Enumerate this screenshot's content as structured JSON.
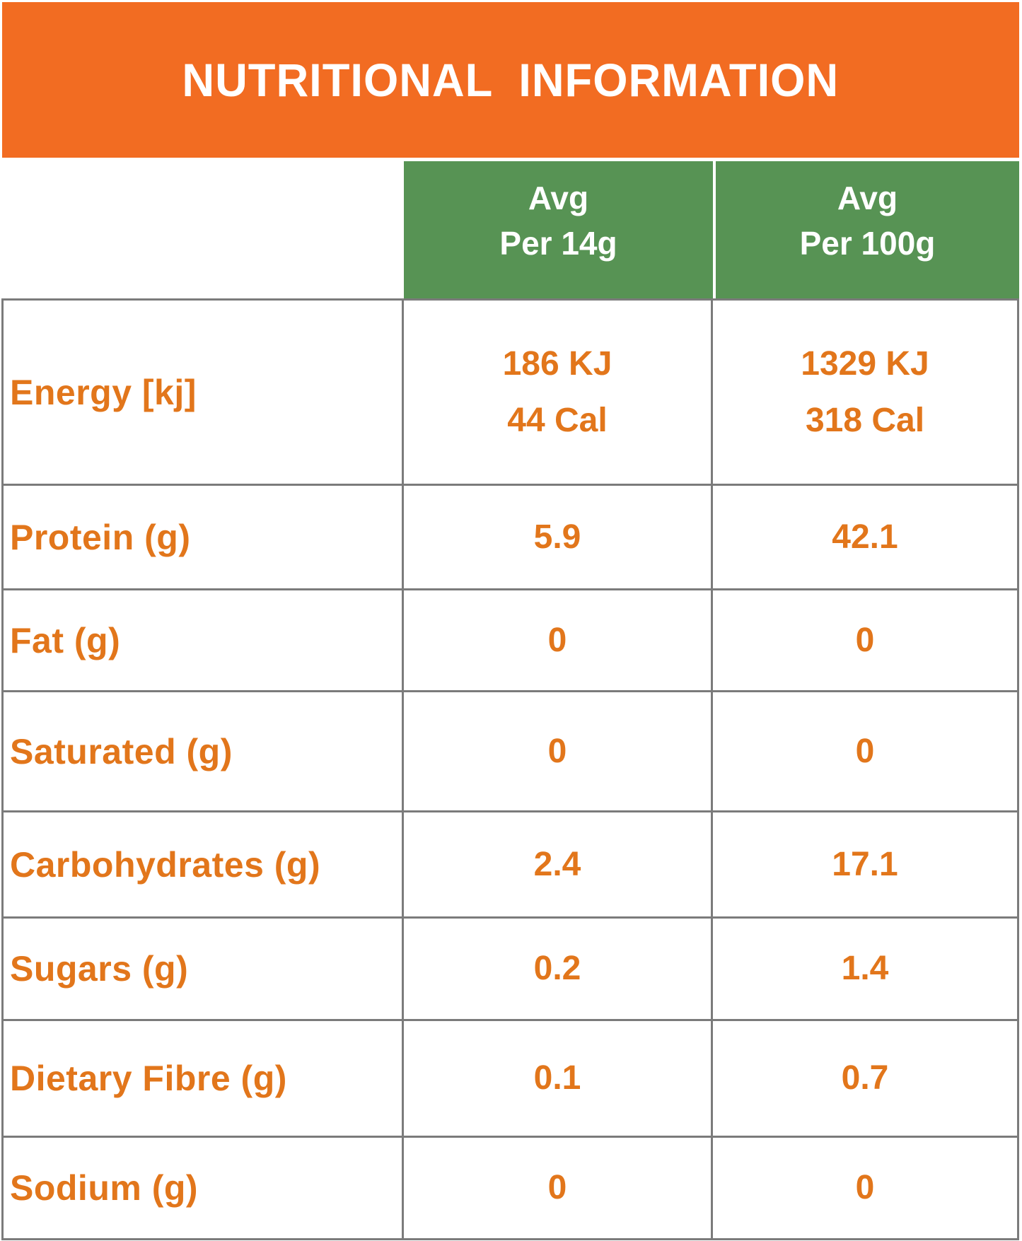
{
  "banner": {
    "title": "NUTRITIONAL  INFORMATION"
  },
  "columns": [
    {
      "lines": [
        "Avg",
        "Per 14g"
      ]
    },
    {
      "lines": [
        "Avg",
        "Per 100g"
      ]
    }
  ],
  "rows": [
    {
      "label": "Energy [kj]",
      "per_14g": [
        "186 KJ",
        "44 Cal"
      ],
      "per_100g": [
        "1329 KJ",
        "318 Cal"
      ]
    },
    {
      "label": "Protein (g)",
      "per_14g": [
        "5.9"
      ],
      "per_100g": [
        "42.1"
      ]
    },
    {
      "label": "Fat (g)",
      "per_14g": [
        "0"
      ],
      "per_100g": [
        "0"
      ]
    },
    {
      "label": "Saturated (g)",
      "per_14g": [
        "0"
      ],
      "per_100g": [
        "0"
      ]
    },
    {
      "label": "Carbohydrates (g)",
      "per_14g": [
        "2.4"
      ],
      "per_100g": [
        "17.1"
      ]
    },
    {
      "label": "Sugars (g)",
      "per_14g": [
        "0.2"
      ],
      "per_100g": [
        "1.4"
      ]
    },
    {
      "label": "Dietary Fibre (g)",
      "per_14g": [
        "0.1"
      ],
      "per_100g": [
        "0.7"
      ]
    },
    {
      "label": "Sodium (g)",
      "per_14g": [
        "0"
      ],
      "per_100g": [
        "0"
      ]
    }
  ],
  "colors": {
    "banner_orange": "#F26C22",
    "header_green": "#579354",
    "text_orange": "#E2761B",
    "border_gray": "#7B7B7B",
    "title_white": "#FFFFFF"
  }
}
